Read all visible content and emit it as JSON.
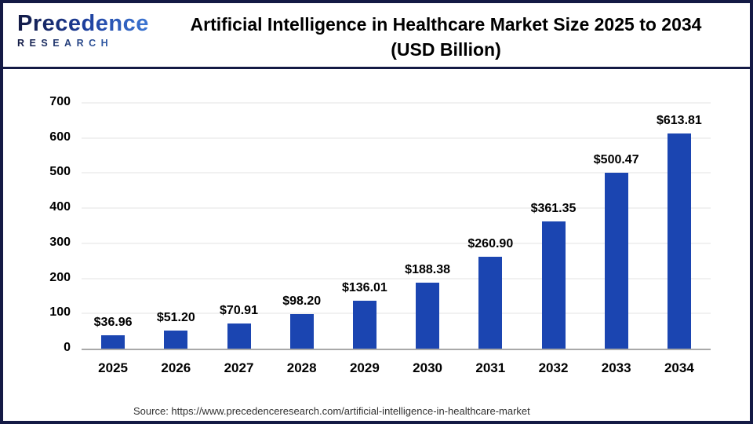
{
  "header": {
    "logo_line1": "Precedence",
    "logo_line2": "RESEARCH",
    "title_line1": "Artificial Intelligence in Healthcare Market Size 2025 to 2034",
    "title_line2": "(USD Billion)"
  },
  "chart_data": {
    "type": "bar",
    "title": "Artificial Intelligence in Healthcare Market Size 2025 to 2034 (USD Billion)",
    "categories": [
      "2025",
      "2026",
      "2027",
      "2028",
      "2029",
      "2030",
      "2031",
      "2032",
      "2033",
      "2034"
    ],
    "values": [
      36.96,
      51.2,
      70.91,
      98.2,
      136.01,
      188.38,
      260.9,
      361.35,
      500.47,
      613.81
    ],
    "data_labels": [
      "$36.96",
      "$51.20",
      "$70.91",
      "$98.20",
      "$136.01",
      "$188.38",
      "$260.90",
      "$361.35",
      "$500.47",
      "$613.81"
    ],
    "xlabel": "",
    "ylabel": "",
    "ylim": [
      0,
      700
    ],
    "yticks": [
      0,
      100,
      200,
      300,
      400,
      500,
      600,
      700
    ],
    "grid": true,
    "legend": "none",
    "bar_color": "#1b45b1"
  },
  "colors": {
    "bar": "#1b45b1",
    "frame_border": "#141a45",
    "gridline": "#f1f1f1",
    "axis_line": "#a9a9a9",
    "logo_dark": "#131a44",
    "logo_light": "#3f7bd8"
  },
  "footer": {
    "source": "Source: https://www.precedenceresearch.com/artificial-intelligence-in-healthcare-market"
  }
}
